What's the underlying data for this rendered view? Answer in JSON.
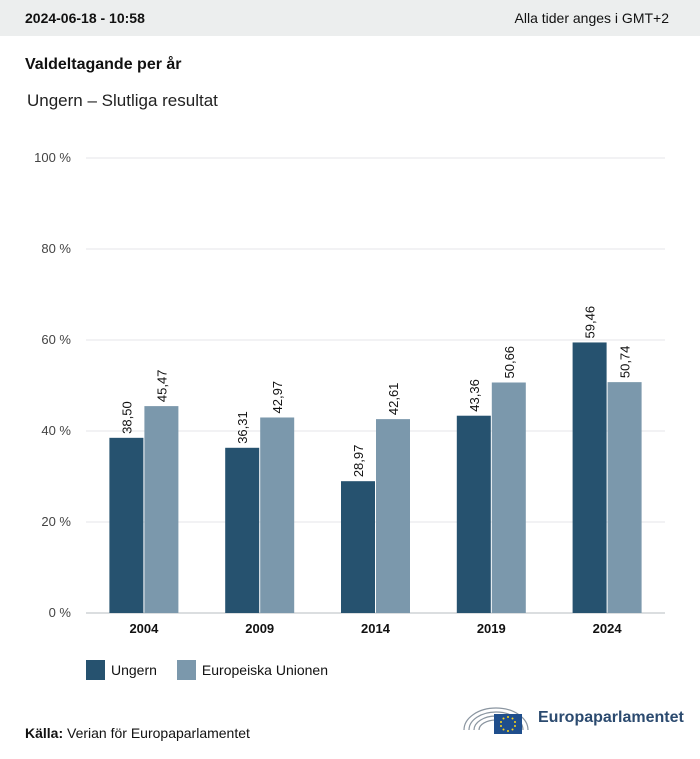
{
  "header": {
    "timestamp": "2024-06-18 - 10:58",
    "timezone": "Alla tider anges i GMT+2"
  },
  "title": "Valdeltagande per år",
  "subtitle": "Ungern – Slutliga resultat",
  "chart_data": {
    "type": "bar",
    "categories": [
      "2004",
      "2009",
      "2014",
      "2019",
      "2024"
    ],
    "series": [
      {
        "name": "Ungern",
        "color": "#26526f",
        "values": [
          38.5,
          36.31,
          28.97,
          43.36,
          59.46
        ],
        "labels": [
          "38,50",
          "36,31",
          "28,97",
          "43,36",
          "59,46"
        ]
      },
      {
        "name": "Europeiska Unionen",
        "color": "#7b98ac",
        "values": [
          45.47,
          42.97,
          42.61,
          50.66,
          50.74
        ],
        "labels": [
          "45,47",
          "42,97",
          "42,61",
          "50,66",
          "50,74"
        ]
      }
    ],
    "ylim": [
      0,
      100
    ],
    "yticks": [
      0,
      20,
      40,
      60,
      80,
      100
    ],
    "ytick_labels": [
      "0 %",
      "20 %",
      "40 %",
      "60 %",
      "80 %",
      "100 %"
    ],
    "grid": true,
    "legend": "bottom-left"
  },
  "legend": {
    "items": [
      {
        "label": "Ungern",
        "color": "#26526f"
      },
      {
        "label": "Europeiska Unionen",
        "color": "#7b98ac"
      }
    ]
  },
  "source": {
    "label": "Källa:",
    "text": "Verian för Europaparlamentet"
  },
  "logo": {
    "name": "Europaparlamentet",
    "icon": "european-parliament-hemicycle-icon"
  }
}
